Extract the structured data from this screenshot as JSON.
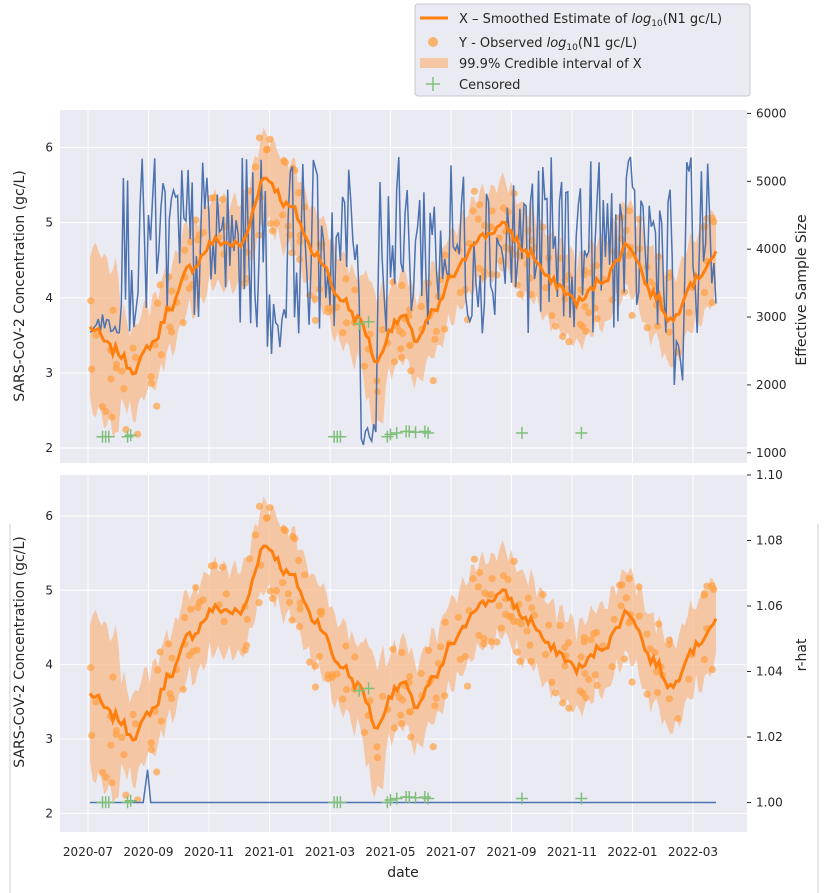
{
  "colors": {
    "panel_bg": "#EAEAF2",
    "grid": "#FFFFFF",
    "smoothed": "#FF7F0E",
    "observed": "#FFA042",
    "interval": "#F7B98A",
    "censored": "#7FBF7B",
    "secondary": "#4C72B0"
  },
  "legend": {
    "smoothed_prefix": "X – Smoothed Estimate of ",
    "log_base": "log",
    "log_sub": "10",
    "smoothed_suffix": "(N1 gc/L)",
    "observed_prefix": "Y - Observed ",
    "observed_suffix": "(N1 gc/L)",
    "interval": "99.9% Credible interval of X",
    "censored": "Censored"
  },
  "chart_data": [
    {
      "type": "line",
      "panel": "top",
      "ylabel": "SARS-CoV-2 Concentration (gc/L)",
      "ylim": [
        1.8,
        6.5
      ],
      "yticks": [
        "2",
        "3",
        "4",
        "5",
        "6"
      ],
      "y2label": "Effective Sample Size",
      "y2lim": [
        850,
        6050
      ],
      "y2ticks": [
        "1000",
        "2000",
        "3000",
        "4000",
        "5000",
        "6000"
      ],
      "x_knots_t": [
        0,
        0.04,
        0.07,
        0.1,
        0.13,
        0.16,
        0.2,
        0.24,
        0.28,
        0.32,
        0.36,
        0.4,
        0.43,
        0.46,
        0.48,
        0.5,
        0.52,
        0.55,
        0.58,
        0.62,
        0.66,
        0.7,
        0.74,
        0.78,
        0.82,
        0.86,
        0.9,
        0.93,
        0.96,
        1.0
      ],
      "smoothed_knots": [
        3.6,
        3.3,
        3.05,
        3.4,
        3.9,
        4.4,
        4.75,
        4.7,
        5.6,
        5.2,
        4.6,
        4.0,
        3.7,
        3.15,
        3.6,
        3.75,
        3.45,
        3.8,
        4.3,
        4.8,
        4.95,
        4.6,
        4.2,
        3.95,
        4.25,
        4.7,
        4.05,
        3.7,
        4.2,
        4.55
      ],
      "ess_range": [
        1000,
        6000
      ],
      "censored_t": [
        0.02,
        0.025,
        0.03,
        0.06,
        0.065,
        0.39,
        0.395,
        0.4,
        0.43,
        0.445,
        0.475,
        0.48,
        0.49,
        0.505,
        0.51,
        0.52,
        0.535,
        0.54,
        0.69,
        0.785
      ],
      "censored_y": [
        2.15,
        2.15,
        2.15,
        2.15,
        2.17,
        2.15,
        2.15,
        2.15,
        3.65,
        3.68,
        2.15,
        2.18,
        2.2,
        2.22,
        2.22,
        2.21,
        2.22,
        2.2,
        2.2,
        2.2
      ]
    },
    {
      "type": "line",
      "panel": "bottom",
      "ylabel": "SARS-CoV-2 Concentration (gc/L)",
      "ylim": [
        1.75,
        6.55
      ],
      "yticks": [
        "2",
        "3",
        "4",
        "5",
        "6"
      ],
      "y2label": "r-hat",
      "y2lim": [
        0.991,
        1.1
      ],
      "y2ticks": [
        "1.00",
        "1.02",
        "1.04",
        "1.06",
        "1.08",
        "1.10"
      ],
      "rhat_baseline": 1.0,
      "rhat_spike": 1.01,
      "xlabel": "date",
      "xticks": [
        "2020-07",
        "2020-09",
        "2020-11",
        "2021-01",
        "2021-03",
        "2021-05",
        "2021-07",
        "2021-09",
        "2021-11",
        "2022-01",
        "2022-03"
      ]
    }
  ]
}
